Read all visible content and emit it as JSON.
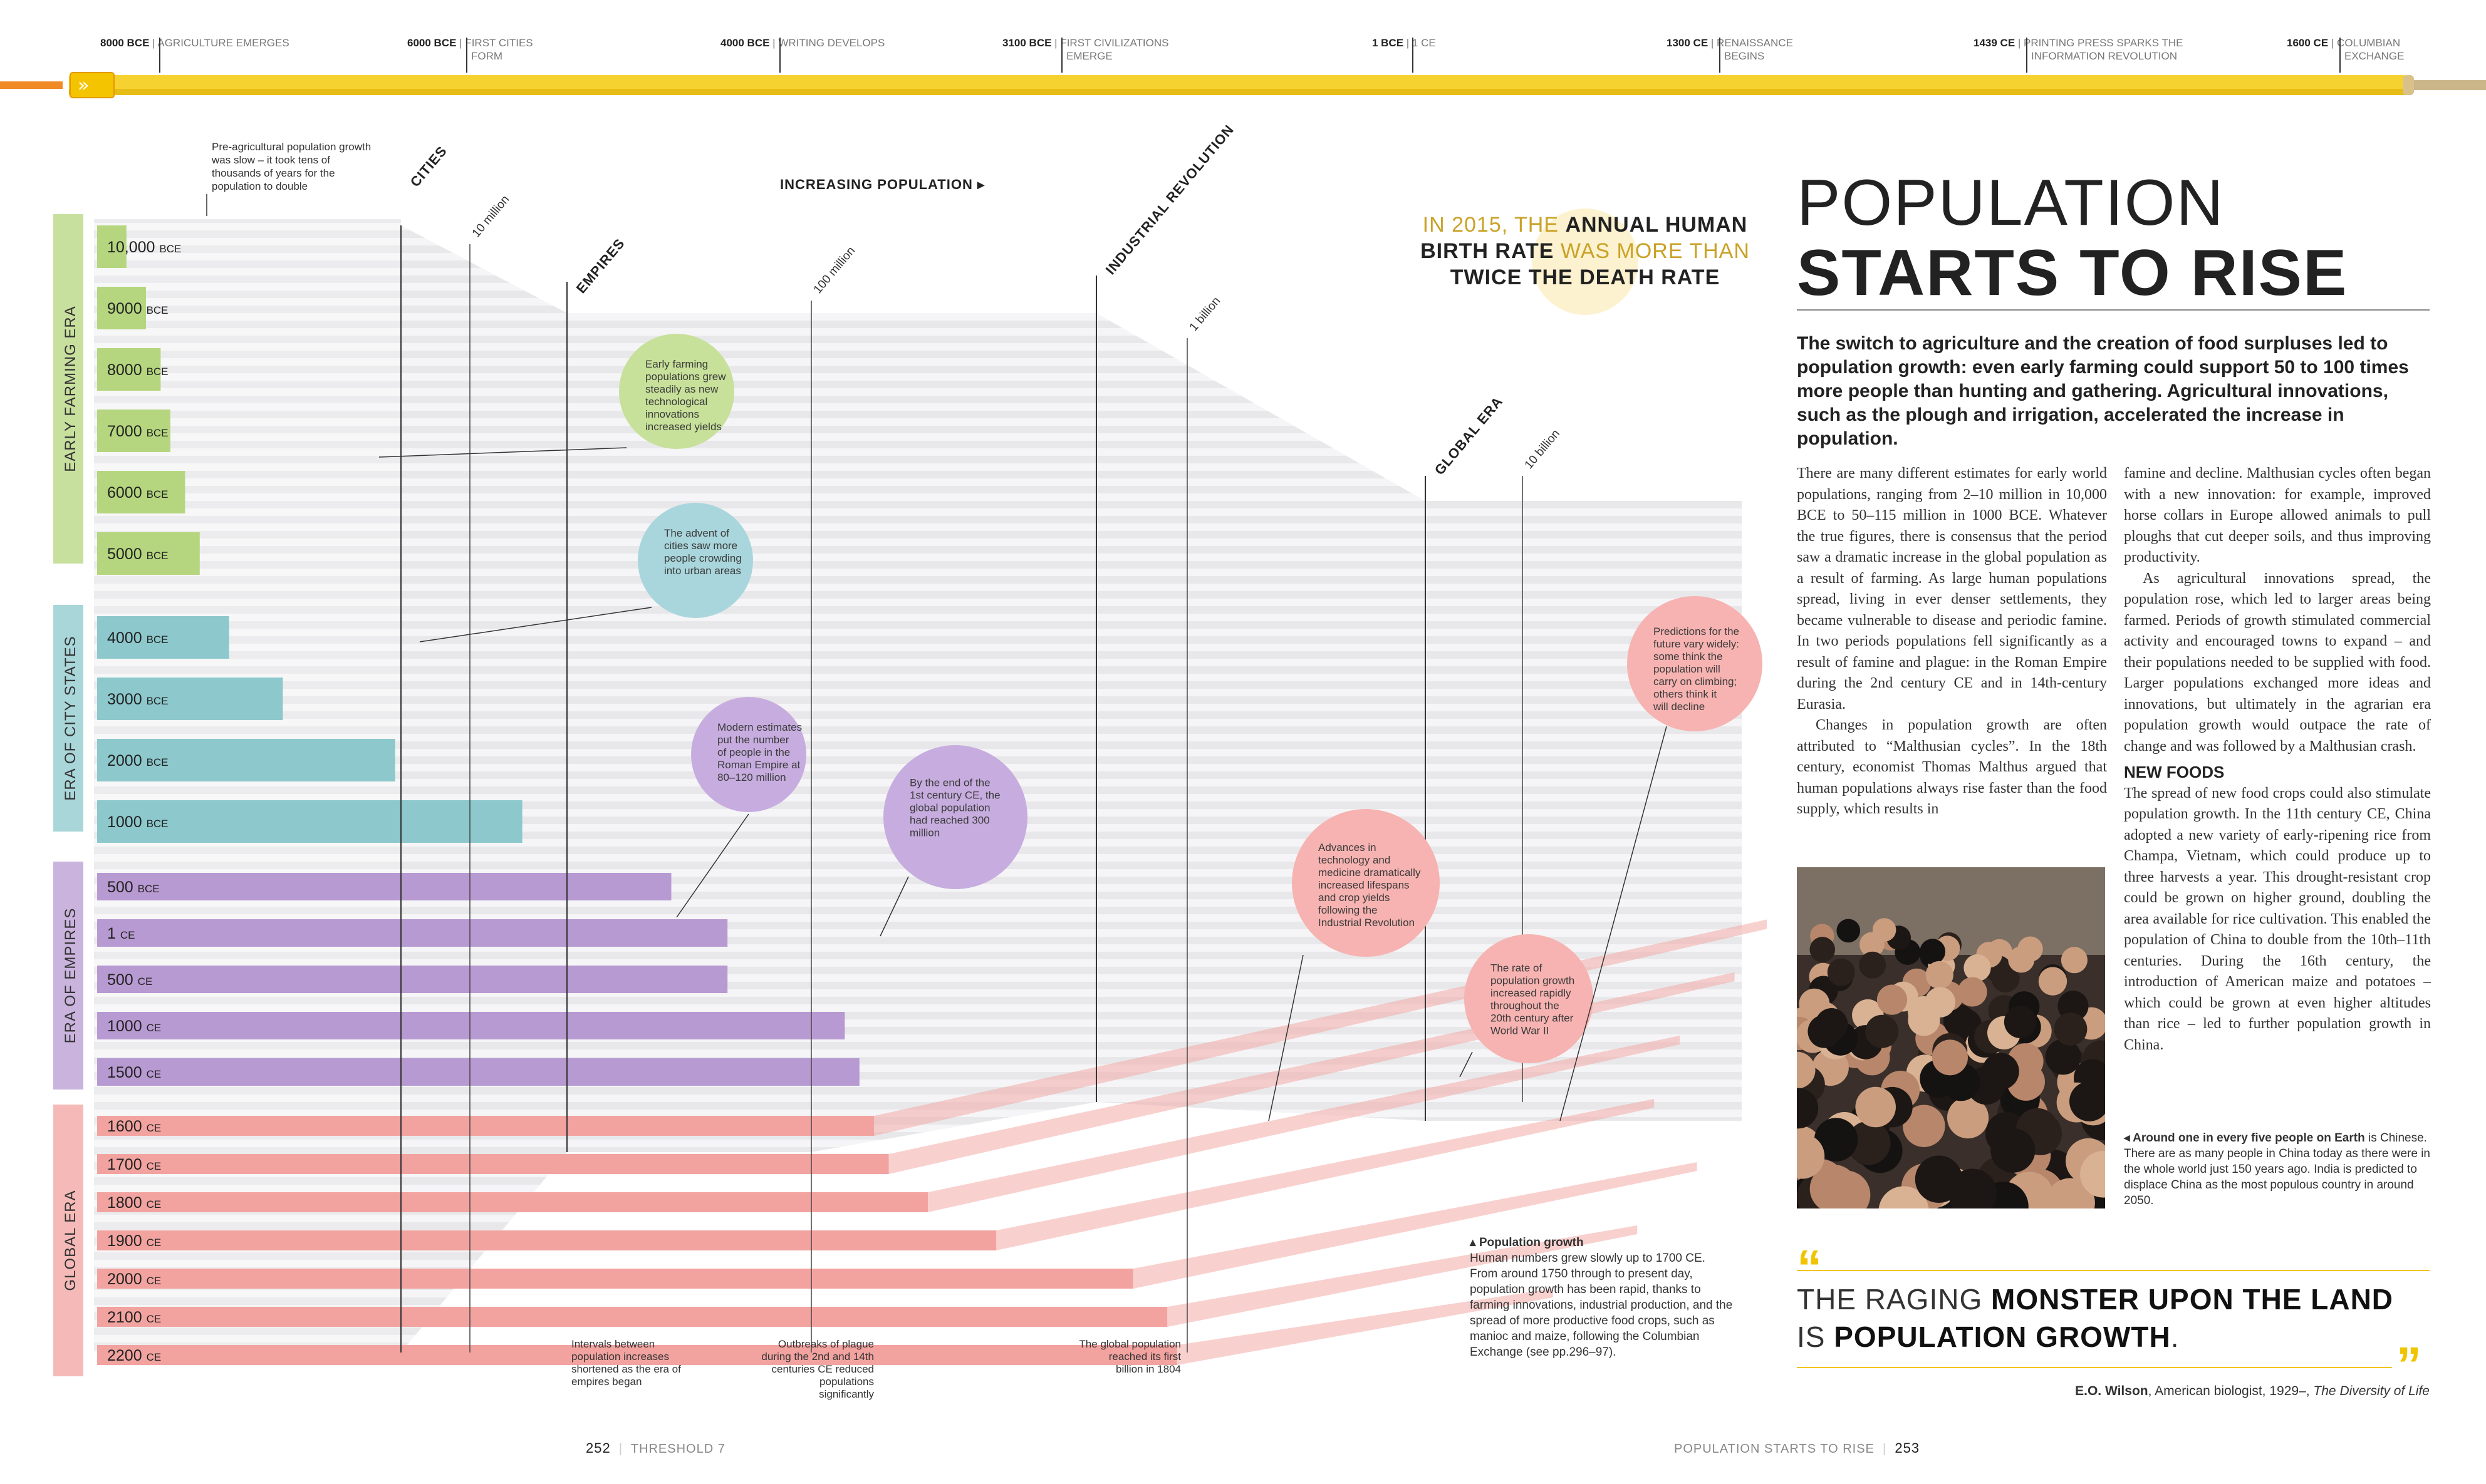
{
  "timeline": {
    "events": [
      {
        "year": "8000 BCE",
        "label": "AGRICULTURE EMERGES",
        "label2": ""
      },
      {
        "year": "6000 BCE",
        "label": "FIRST CITIES",
        "label2": "FORM"
      },
      {
        "year": "4000 BCE",
        "label": "WRITING DEVELOPS",
        "label2": ""
      },
      {
        "year": "3100 BCE",
        "label": "FIRST CIVILIZATIONS",
        "label2": "EMERGE"
      },
      {
        "year": "1 BCE",
        "label": "1 CE",
        "label2": ""
      },
      {
        "year": "1300 CE",
        "label": "RENAISSANCE",
        "label2": "BEGINS"
      },
      {
        "year": "1439 CE",
        "label": "PRINTING PRESS SPARKS THE",
        "label2": "INFORMATION REVOLUTION"
      },
      {
        "year": "1600 CE",
        "label": "COLUMBIAN",
        "label2": "EXCHANGE"
      }
    ],
    "colors": {
      "bar": "#f5d230",
      "bar_dark": "#e2b400",
      "arrow": "#f08a24"
    }
  },
  "chart_data": {
    "type": "bar",
    "axis_title": "INCREASING POPULATION ▸",
    "orientation": "horizontal",
    "scale": "log",
    "eras": [
      {
        "name": "EARLY FARMING ERA",
        "color": "#b5d67e",
        "rows": [
          "10,000",
          "9000",
          "8000",
          "7000",
          "6000",
          "5000"
        ],
        "suffix": "BCE",
        "values": [
          0.72,
          0.8,
          0.86,
          0.9,
          0.96,
          1.02
        ]
      },
      {
        "name": "ERA OF CITY STATES",
        "color": "#8cc8cc",
        "rows": [
          "4000",
          "3000",
          "2000",
          "1000"
        ],
        "suffix": "BCE",
        "values": [
          1.14,
          1.36,
          1.82,
          2.34
        ]
      },
      {
        "name": "ERA OF EMPIRES",
        "color": "#b89ad2",
        "rows": [
          "500",
          "1",
          "500",
          "1000",
          "1500"
        ],
        "suffixes": [
          "BCE",
          "CE",
          "CE",
          "CE",
          "CE"
        ],
        "values": [
          2.95,
          3.18,
          3.18,
          3.66,
          3.72
        ]
      },
      {
        "name": "GLOBAL ERA",
        "color": "#f2a3a0",
        "rows": [
          "1600",
          "1700",
          "1800",
          "1900",
          "2000",
          "2100",
          "2200"
        ],
        "suffix": "CE",
        "values": [
          3.78,
          3.84,
          4.0,
          4.28,
          4.84,
          4.98,
          5.02
        ]
      }
    ],
    "column_headers": [
      "CITIES",
      "EMPIRES",
      "INDUSTRIAL REVOLUTION",
      "GLOBAL ERA"
    ],
    "population_markers": [
      "10 million",
      "100 million",
      "1 billion",
      "10 billion"
    ]
  },
  "annotations": {
    "pre_agri": "Pre-agricultural population growth was slow – it took tens of thousands of years for the population to double",
    "circles": [
      {
        "text": "Early farming populations grew steadily as new technological innovations increased yields",
        "color": "#c7e09a"
      },
      {
        "text": "The advent of cities saw more people crowding into urban areas",
        "color": "#a9d6dc"
      },
      {
        "text": "Modern estimates put the number of people in the Roman Empire at 80–120 million",
        "color": "#c7addf"
      },
      {
        "text": "By the end of the 1st century CE, the global population had reached 300 million",
        "color": "#c7addf"
      },
      {
        "text": "Advances in technology and medicine dramatically increased lifespans and crop yields following the Industrial Revolution",
        "color": "#f6b3b1"
      },
      {
        "text": "The rate of population growth increased rapidly throughout the 20th century after World War II",
        "color": "#f6b3b1"
      },
      {
        "text": "Predictions for the future vary widely: some think the population will carry on climbing; others think it will decline",
        "color": "#f6b3b1"
      }
    ],
    "bottom": [
      "Intervals between population increases shortened as the era of empires began",
      "Outbreaks of plague during the 2nd and 14th centuries CE reduced populations significantly",
      "The global population reached its first billion in 1804"
    ]
  },
  "callout": {
    "pre": "IN 2015, THE ",
    "bold1": "ANNUAL HUMAN BIRTH RATE",
    "mid": " WAS MORE THAN ",
    "bold2": "TWICE THE DEATH RATE"
  },
  "title": {
    "line1": "POPULATION",
    "line2": "STARTS TO RISE"
  },
  "intro": "The switch to agriculture and the creation of food surpluses led to population growth: even early farming could support 50 to 100 times more people than hunting and gathering. Agricultural innovations, such as the plough and irrigation, accelerated the increase in population.",
  "body": {
    "col1_p1": "There are many different estimates for early world populations, ranging from 2–10 million in 10,000 BCE to 50–115 million in 1000 BCE. Whatever the true figures, there is consensus that the period saw a dramatic increase in the global population as a result of farming. As large human populations spread, living in ever denser settlements, they became vulnerable to disease and periodic famine. In two periods populations fell significantly as a result of famine and plague: in the Roman Empire during the 2nd century CE and in 14th-century Eurasia.",
    "col1_p2": "Changes in population growth are often attributed to “Malthusian cycles”. In the 18th century, economist Thomas Malthus argued that human populations always rise faster than the food supply, which results in",
    "col2_p1": "famine and decline. Malthusian cycles often began with a new innovation: for example, improved horse collars in Europe allowed animals to pull ploughs that cut deeper soils, and thus improving productivity.",
    "col2_p2": "As agricultural innovations spread, the population rose, which led to larger areas being farmed. Periods of growth stimulated commercial activity and encouraged towns to expand – and their populations needed to be supplied with food. Larger populations exchanged more ideas and innovations, but ultimately in the agrarian era population growth would outpace the rate of change and was followed by a Malthusian crash.",
    "new_foods_head": "NEW FOODS",
    "col2_p3": "The spread of new food crops could also stimulate population growth. In the 11th century CE, China adopted a new variety of early-ripening rice from Champa, Vietnam, which could produce up to three harvests a year. This drought-resistant crop could be grown on higher ground, doubling the area available for rice cultivation. This enabled the population of China to double from the 10th–11th centuries. During the 16th century, the introduction of American maize and potatoes – which could be grown at even higher altitudes than rice – led to further population growth in China."
  },
  "photo_caption": {
    "head": "◂ Around one in every five people on Earth",
    "rest": " is Chinese. There are as many people in China today as there were in the whole world just 150 years ago. India is predicted to displace China as the most populous country in around 2050."
  },
  "figure_caption": {
    "head": "▴ Population growth",
    "rest": "Human numbers grew slowly up to 1700 CE. From around 1750 through to present day, population growth has been rapid, thanks to farming innovations, industrial production, and the spread of more productive food crops, such as manioc and maize, following the Columbian Exchange (see pp.296–97)."
  },
  "quote": {
    "pre": "THE RAGING ",
    "bold1": "MONSTER UPON THE LAND",
    "mid": " IS ",
    "bold2": "POPULATION GROWTH",
    "end": ".",
    "open": "“",
    "close": "”"
  },
  "quote_attr": {
    "name": "E.O. Wilson",
    "desc": ", American biologist, 1929–, ",
    "work": "The Diversity of Life"
  },
  "footer": {
    "left_num": "252",
    "left_label": "THRESHOLD 7",
    "right_label": "POPULATION STARTS TO RISE",
    "right_num": "253"
  }
}
